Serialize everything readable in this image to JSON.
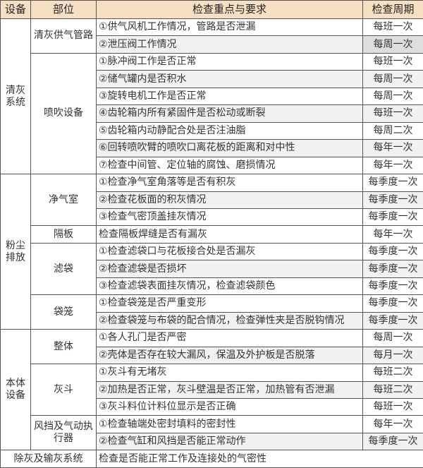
{
  "headers": [
    "设备",
    "部位",
    "检查重点与要求",
    "检查周期"
  ],
  "colors": {
    "header_bg": "#f7dfc4",
    "border": "#555555",
    "alt_row": "#f1f1f1"
  },
  "groups": [
    {
      "equipment": "清灰系统",
      "parts": [
        {
          "part": "清灰供气管路",
          "items": [
            {
              "req": "①供气风机工作情况，管路是否泄漏",
              "period": "每班一次"
            },
            {
              "req": "②泄压阀工作情况",
              "period": "每周一次"
            }
          ]
        },
        {
          "part": "喷吹设备",
          "items": [
            {
              "req": "①脉冲阀工作是否正常",
              "period": "每班一次"
            },
            {
              "req": "②储气罐内是否积水",
              "period": "每周一次"
            },
            {
              "req": "③旋转电机工作是否正常",
              "period": "每周一次"
            },
            {
              "req": "④齿轮箱内所有紧固件是否松动或断裂",
              "period": "每班一次"
            },
            {
              "req": "⑤齿轮箱内动静配合处是否注油脂",
              "period": "每周二次"
            },
            {
              "req": "⑥回转喷吹臂的喷吹口离花板的距离和对中性",
              "period": "每年一次"
            },
            {
              "req": "⑦检查中间管、定位轴的腐蚀、磨损情况",
              "period": "每年一次"
            }
          ]
        }
      ]
    },
    {
      "equipment": "粉尘排放",
      "parts": [
        {
          "part": "净气室",
          "items": [
            {
              "req": "①检查净气室角落等是否有积灰",
              "period": "每季度一次"
            },
            {
              "req": "②检查花板面的积灰情况",
              "period": "每季度一次"
            },
            {
              "req": "③检查气密顶盖挂灰情况",
              "period": "每季度一次"
            }
          ]
        },
        {
          "part": "隔板",
          "items": [
            {
              "req": "检查隔板焊缝是否有漏灰",
              "period": "每年一次"
            }
          ]
        },
        {
          "part": "滤袋",
          "items": [
            {
              "req": "①检查滤袋口与花板接合处是否漏灰",
              "period": "每季度一次"
            },
            {
              "req": "②检查滤袋是否损坏",
              "period": "每季度一次"
            },
            {
              "req": "③检查滤袋表面挂灰情况，检查滤袋颜色",
              "period": "每季度一次"
            }
          ]
        },
        {
          "part": "袋笼",
          "items": [
            {
              "req": "①检查袋笼是否严重变形",
              "period": "每季度一次"
            },
            {
              "req": "②检查袋笼与布袋的配合情况，检查弹性夹是否脱钩情况",
              "period": "每季度一次"
            }
          ]
        }
      ]
    },
    {
      "equipment": "本体设备",
      "parts": [
        {
          "part": "整体",
          "items": [
            {
              "req": "①各人孔门是否严密",
              "period": "每周一次"
            },
            {
              "req": "②壳体是否存在较大漏风，保温及外护板是否脱落",
              "period": "每月一次"
            }
          ]
        },
        {
          "part": "灰斗",
          "items": [
            {
              "req": "①灰斗有无堵灰",
              "period": "每班二次"
            },
            {
              "req": "②加热是否正常，灰斗壁温是否正常，加热管有否泄漏",
              "period": "每班二次"
            },
            {
              "req": "③灰斗料位计料位显示是否正确",
              "period": "每班一次"
            }
          ]
        },
        {
          "part": "风挡及气动执行器",
          "items": [
            {
              "req": "①检查轴端处密封填料的密封性",
              "period": "每年一次"
            },
            {
              "req": "②检查气缸和风挡是否能正常动作",
              "period": "每季度一次"
            }
          ]
        }
      ]
    }
  ],
  "footer": {
    "equipment": "除灰及输灰系统",
    "req": "检查是否能正常工作及连接处的气密性"
  }
}
